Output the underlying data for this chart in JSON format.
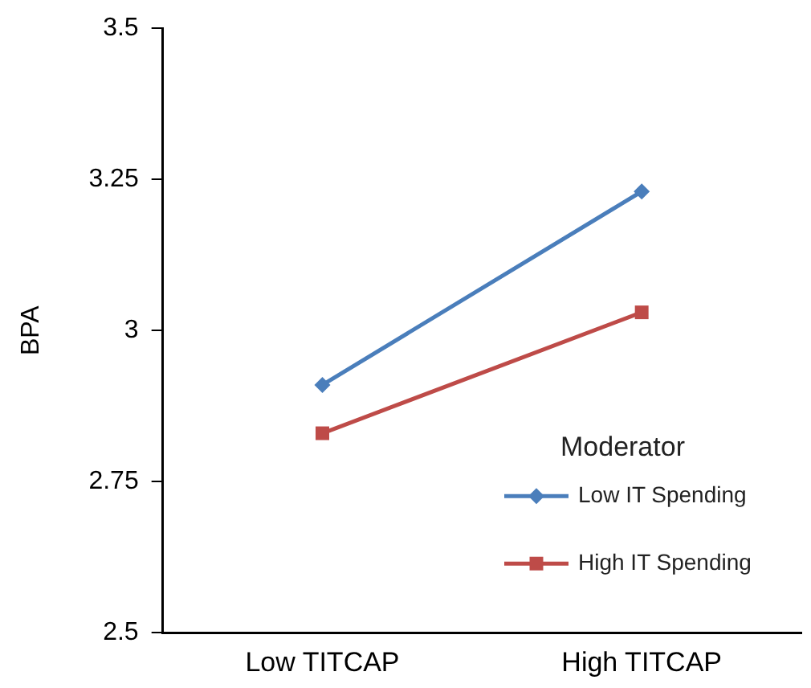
{
  "chart_data": {
    "type": "line",
    "ylabel": "BPA",
    "categories": [
      "Low TITCAP",
      "High TITCAP"
    ],
    "series": [
      {
        "name": "Low IT Spending",
        "color": "#4a7ebb",
        "values": [
          2.91,
          3.23
        ],
        "marker": "diamond"
      },
      {
        "name": "High IT Spending",
        "color": "#be4b48",
        "values": [
          2.83,
          3.03
        ],
        "marker": "square"
      }
    ],
    "ylim": [
      2.5,
      3.5
    ],
    "yticks": [
      2.5,
      2.75,
      3,
      3.25,
      3.5
    ],
    "grid": false,
    "legend": "bottom right",
    "legend_title": "Moderator"
  }
}
